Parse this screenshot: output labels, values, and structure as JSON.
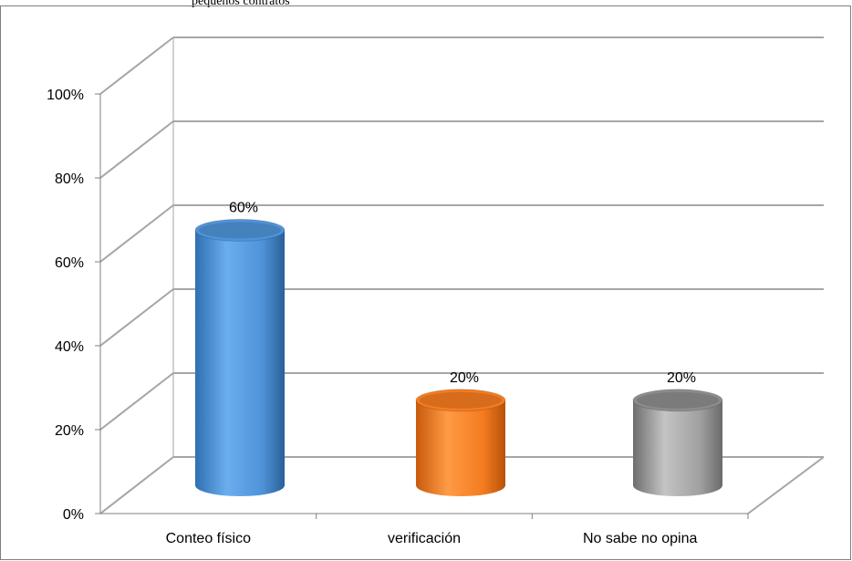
{
  "top_caption": "pequeños contratos",
  "colors": {
    "frame": "#7f7f7f",
    "grid": "#a6a6a6",
    "axis": "#7f7f7f",
    "text": "#000000",
    "bar_colors": [
      "#4f93d8",
      "#f47c20",
      "#8c8c8c"
    ]
  },
  "chart_data": {
    "type": "bar",
    "style": "3d-cylinder",
    "categories": [
      "Conteo físico",
      "verificación",
      "No sabe no opina"
    ],
    "values": [
      60,
      20,
      20
    ],
    "data_labels": [
      "60%",
      "20%",
      "20%"
    ],
    "y_ticks": [
      0,
      20,
      40,
      60,
      80,
      100
    ],
    "y_tick_labels": [
      "0%",
      "20%",
      "40%",
      "60%",
      "80%",
      "100%"
    ],
    "ylim": [
      0,
      100
    ],
    "grid": true,
    "legend": "none",
    "title": "",
    "xlabel": "",
    "ylabel": ""
  }
}
